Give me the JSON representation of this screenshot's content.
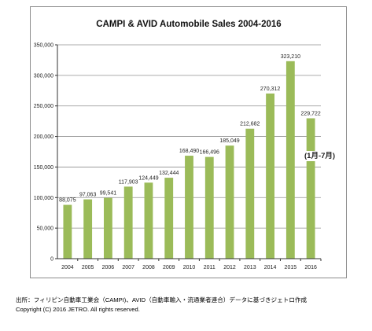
{
  "chart_data": {
    "type": "bar",
    "title": "CAMPI & AVID Automobile Sales 2004-2016",
    "categories": [
      "2004",
      "2005",
      "2006",
      "2007",
      "2008",
      "2009",
      "2010",
      "2011",
      "2012",
      "2013",
      "2014",
      "2015",
      "2016"
    ],
    "values": [
      88075,
      97063,
      99541,
      117903,
      124449,
      132444,
      168490,
      166496,
      185049,
      212682,
      270312,
      323210,
      229722
    ],
    "data_labels": [
      "88,075",
      "97,063",
      "99,541",
      "117,903",
      "124,449",
      "132,444",
      "168,490",
      "166,496",
      "185,049",
      "212,682",
      "270,312",
      "323,210",
      "229,722"
    ],
    "yticks": [
      "0",
      "50,000",
      "100,000",
      "150,000",
      "200,000",
      "250,000",
      "300,000",
      "350,000"
    ],
    "ylim": [
      0,
      350000
    ],
    "grid": true,
    "bar_color": "#9bbb59",
    "annotation": "(1月-7月)"
  },
  "footer": {
    "source": "出所：フィリピン自動車工業会（CAMPI)、AVID（自動車輸入・流通業者連合）データに基づきジェトロ作成",
    "copyright": "Copyright (C) 2016 JETRO. All rights reserved."
  }
}
